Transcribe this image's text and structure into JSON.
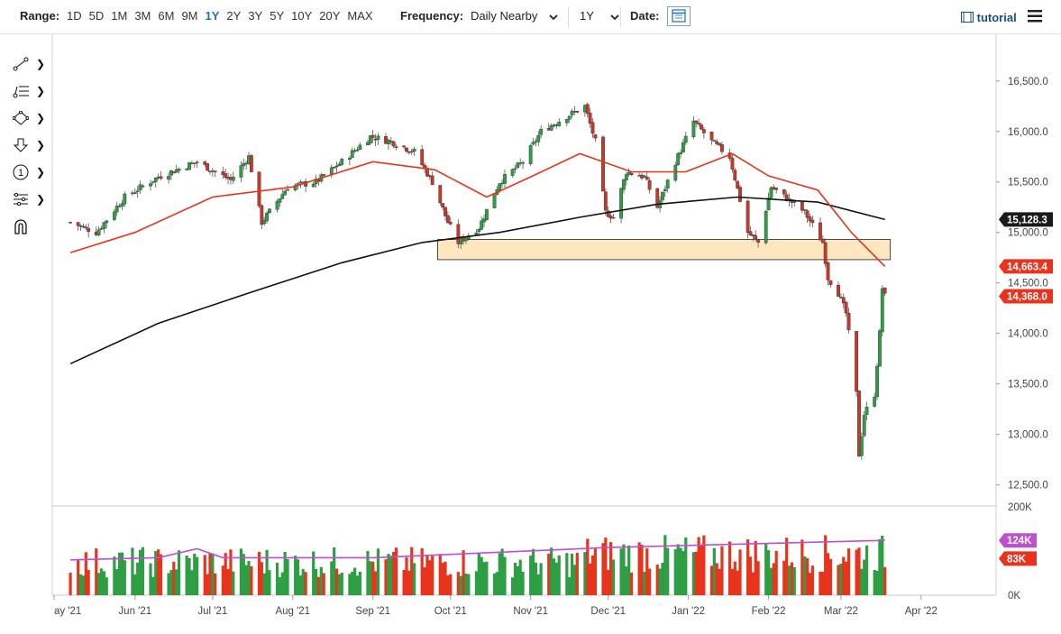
{
  "toolbar": {
    "range_label": "Range:",
    "ranges": [
      "1D",
      "5D",
      "1M",
      "3M",
      "6M",
      "9M",
      "1Y",
      "2Y",
      "3Y",
      "5Y",
      "10Y",
      "20Y",
      "MAX"
    ],
    "active_range": "1Y",
    "frequency_label": "Frequency:",
    "frequency_value": "Daily Nearby",
    "period_value": "1Y",
    "date_label": "Date:",
    "tutorial_label": "tutorial"
  },
  "icons": {
    "left_tools": [
      "trend-line-icon",
      "fib-lines-icon",
      "shape-icon",
      "arrow-down-icon",
      "numbered-marker-icon",
      "pattern-tool-icon",
      "magnet-icon"
    ],
    "calendar": "calendar-icon",
    "menu": "hamburger-menu-icon",
    "tutorial": "film-icon"
  },
  "chart_data": [
    {
      "type": "candlestick",
      "title": "",
      "x_tick_labels": [
        "ay '21",
        "Jun '21",
        "Jul '21",
        "Aug '21",
        "Sep '21",
        "Oct '21",
        "Nov '21",
        "Dec '21",
        "Jan '22",
        "Feb '22",
        "Mar '22",
        "Apr '22"
      ],
      "y_tick_labels": [
        "16,500.0",
        "16,000.0",
        "15,500.0",
        "15,000.0",
        "14,500.0",
        "14,000.0",
        "13,500.0",
        "13,000.0",
        "12,500.0"
      ],
      "ylim": [
        12300,
        16900
      ],
      "grid": false,
      "price_labels": [
        {
          "text": "15,128.3",
          "value": 15128.3,
          "color": "#1a1a1a",
          "series": "200-day moving average"
        },
        {
          "text": "14,663.4",
          "value": 14663.4,
          "color": "#e8341c",
          "series": "50-day moving average"
        },
        {
          "text": "14,368.0",
          "value": 14368.0,
          "color": "#e8341c",
          "series": "last price"
        }
      ],
      "support_zone": {
        "low": 14730,
        "high": 14930,
        "color": "#fde6c0"
      },
      "close_path": [
        [
          "2021-05-07",
          15100
        ],
        [
          "2021-05-17",
          15000
        ],
        [
          "2021-05-28",
          15350
        ],
        [
          "2021-06-10",
          15550
        ],
        [
          "2021-06-25",
          15700
        ],
        [
          "2021-07-02",
          15600
        ],
        [
          "2021-07-08",
          15520
        ],
        [
          "2021-07-15",
          15750
        ],
        [
          "2021-07-20",
          15100
        ],
        [
          "2021-07-30",
          15450
        ],
        [
          "2021-08-10",
          15500
        ],
        [
          "2021-08-20",
          15700
        ],
        [
          "2021-08-31",
          15950
        ],
        [
          "2021-09-08",
          15900
        ],
        [
          "2021-09-17",
          15800
        ],
        [
          "2021-09-24",
          15500
        ],
        [
          "2021-09-30",
          15100
        ],
        [
          "2021-10-04",
          14900
        ],
        [
          "2021-10-12",
          15050
        ],
        [
          "2021-10-20",
          15500
        ],
        [
          "2021-10-29",
          15700
        ],
        [
          "2021-11-05",
          16000
        ],
        [
          "2021-11-15",
          16150
        ],
        [
          "2021-11-22",
          16250
        ],
        [
          "2021-11-26",
          15900
        ],
        [
          "2021-11-30",
          15200
        ],
        [
          "2021-12-03",
          15150
        ],
        [
          "2021-12-08",
          15600
        ],
        [
          "2021-12-15",
          15550
        ],
        [
          "2021-12-20",
          15250
        ],
        [
          "2021-12-27",
          15700
        ],
        [
          "2022-01-03",
          16100
        ],
        [
          "2022-01-10",
          15900
        ],
        [
          "2022-01-17",
          15750
        ],
        [
          "2022-01-24",
          15000
        ],
        [
          "2022-01-28",
          14900
        ],
        [
          "2022-02-02",
          15450
        ],
        [
          "2022-02-10",
          15300
        ],
        [
          "2022-02-15",
          15200
        ],
        [
          "2022-02-22",
          14900
        ],
        [
          "2022-02-24",
          14550
        ],
        [
          "2022-02-28",
          14400
        ],
        [
          "2022-03-03",
          14200
        ],
        [
          "2022-03-07",
          13400
        ],
        [
          "2022-03-08",
          12800
        ],
        [
          "2022-03-10",
          13200
        ],
        [
          "2022-03-14",
          13400
        ],
        [
          "2022-03-16",
          14000
        ],
        [
          "2022-03-17",
          14450
        ],
        [
          "2022-03-18",
          14368
        ]
      ],
      "ma50_path": [
        [
          "2021-05-07",
          14800
        ],
        [
          "2021-06-01",
          15000
        ],
        [
          "2021-07-01",
          15350
        ],
        [
          "2021-08-01",
          15450
        ],
        [
          "2021-09-01",
          15700
        ],
        [
          "2021-09-25",
          15620
        ],
        [
          "2021-10-15",
          15350
        ],
        [
          "2021-11-01",
          15550
        ],
        [
          "2021-11-20",
          15780
        ],
        [
          "2021-12-10",
          15600
        ],
        [
          "2021-12-31",
          15600
        ],
        [
          "2022-01-18",
          15780
        ],
        [
          "2022-02-01",
          15560
        ],
        [
          "2022-02-20",
          15420
        ],
        [
          "2022-03-05",
          15000
        ],
        [
          "2022-03-18",
          14663.4
        ]
      ],
      "ma200_path": [
        [
          "2021-05-07",
          13700
        ],
        [
          "2021-06-10",
          14100
        ],
        [
          "2021-07-15",
          14400
        ],
        [
          "2021-08-20",
          14700
        ],
        [
          "2021-09-20",
          14900
        ],
        [
          "2021-10-20",
          15000
        ],
        [
          "2021-11-20",
          15150
        ],
        [
          "2021-12-20",
          15280
        ],
        [
          "2022-01-20",
          15350
        ],
        [
          "2022-02-20",
          15300
        ],
        [
          "2022-03-18",
          15128.3
        ]
      ]
    },
    {
      "type": "bar",
      "title": "",
      "y_tick_labels": [
        "200K",
        "0K"
      ],
      "ylim": [
        0,
        200000
      ],
      "grid": false,
      "volume_labels": [
        {
          "text": "124K",
          "value": 124000,
          "color": "#c04fcf",
          "series": "average volume"
        },
        {
          "text": "83K",
          "value": 83000,
          "color": "#e8341c",
          "series": "latest volume"
        }
      ],
      "avg_path": [
        [
          "2021-05-07",
          80000
        ],
        [
          "2021-06-10",
          85000
        ],
        [
          "2021-06-25",
          105000
        ],
        [
          "2021-07-05",
          85000
        ],
        [
          "2021-09-01",
          85000
        ],
        [
          "2021-12-01",
          108000
        ],
        [
          "2022-03-18",
          124000
        ]
      ]
    }
  ]
}
